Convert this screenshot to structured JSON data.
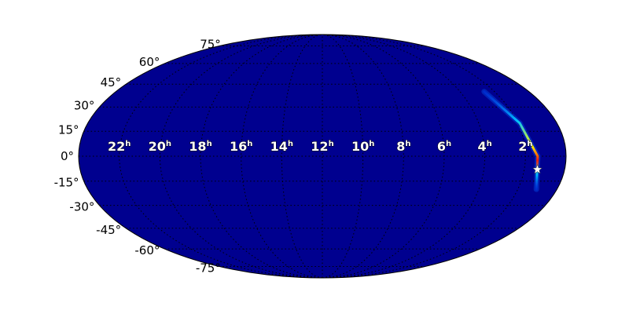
{
  "chart_data": {
    "type": "heatmap",
    "projection": "mollweide",
    "grid": true,
    "background_color": "#00008f",
    "lat_ticks": [
      "75°",
      "60°",
      "45°",
      "30°",
      "15°",
      "0°",
      "-15°",
      "-30°",
      "-45°",
      "-60°",
      "-75°"
    ],
    "lat_values": [
      75,
      60,
      45,
      30,
      15,
      0,
      -15,
      -30,
      -45,
      -60,
      -75
    ],
    "lon_ticks": [
      "22",
      "20",
      "18",
      "16",
      "14",
      "12",
      "10",
      "8",
      "6",
      "4",
      "2"
    ],
    "lon_unit": "h",
    "lon_values_hours": [
      22,
      20,
      18,
      16,
      14,
      12,
      10,
      8,
      6,
      4,
      2
    ],
    "probability_arc": {
      "ra_hours": [
        2.6,
        1.9,
        1.4,
        1.05
      ],
      "dec_deg": [
        40,
        20,
        0,
        -20
      ]
    },
    "marker": {
      "symbol": "star",
      "ra_hours": 1.35,
      "dec_deg": -8,
      "color": "#ffffff"
    }
  }
}
